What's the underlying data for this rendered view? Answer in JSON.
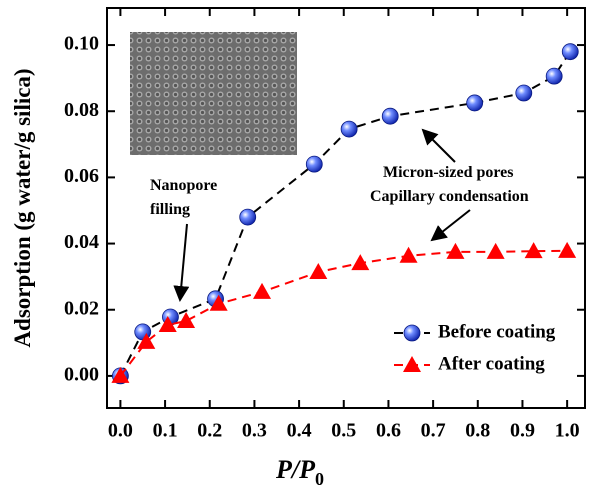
{
  "chart_data": {
    "type": "line",
    "xlabel": "P/P",
    "xlabel_sub": "0",
    "ylabel": "Adsorption (g water/g silica)",
    "xlim": [
      -0.03,
      1.04
    ],
    "ylim": [
      -0.0097,
      0.1112
    ],
    "xticks": [
      {
        "value": 0,
        "label": "0.0"
      },
      0.1,
      0.2,
      0.3,
      0.4,
      0.5,
      0.6,
      0.7,
      0.8,
      0.9,
      {
        "value": 1,
        "label": "1.0"
      }
    ],
    "yticks": [
      {
        "value": 0,
        "label": "0.00"
      },
      {
        "value": 0.02,
        "label": "0.02"
      },
      {
        "value": 0.04,
        "label": "0.04"
      },
      {
        "value": 0.06,
        "label": "0.06"
      },
      {
        "value": 0.08,
        "label": "0.08"
      },
      {
        "value": 0.1,
        "label": "0.10"
      }
    ],
    "legend": "lower right",
    "series": [
      {
        "name": "Before coating",
        "color": "#1f3fe0",
        "marker": "circle",
        "x": [
          0,
          0.05,
          0.112,
          0.213,
          0.285,
          0.434,
          0.512,
          0.604,
          0.793,
          0.903,
          0.971,
          1.007
        ],
        "values": [
          0,
          0.0133,
          0.0178,
          0.0233,
          0.048,
          0.064,
          0.0746,
          0.0785,
          0.0825,
          0.0855,
          0.0906,
          0.098
        ]
      },
      {
        "name": "After coating",
        "color": "#ff0000",
        "marker": "triangle",
        "x": [
          0,
          0.058,
          0.106,
          0.147,
          0.22,
          0.317,
          0.443,
          0.537,
          0.645,
          0.75,
          0.84,
          0.925,
          1.0
        ],
        "values": [
          0,
          0.0103,
          0.0154,
          0.0166,
          0.0218,
          0.0254,
          0.0314,
          0.0341,
          0.0363,
          0.0375,
          0.0375,
          0.0377,
          0.0378
        ]
      }
    ],
    "annotations": [
      {
        "lines": [
          "Nanopore",
          "filling"
        ]
      },
      {
        "lines": [
          "Micron-sized pores",
          "Capillary condensation"
        ]
      }
    ]
  }
}
